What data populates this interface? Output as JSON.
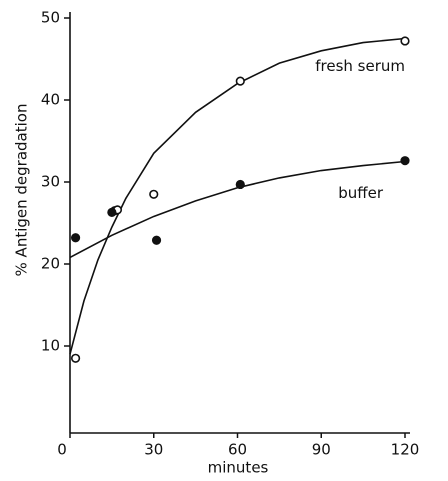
{
  "chart_data": {
    "type": "scatter",
    "x_label": "minutes",
    "y_label": "% Antigen degradation",
    "xlim": [
      0,
      120
    ],
    "ylim": [
      0,
      50
    ],
    "xticks": [
      0,
      30,
      60,
      90,
      120
    ],
    "yticks": [
      10,
      20,
      30,
      40,
      50
    ],
    "series": [
      {
        "name": "fresh serum",
        "marker": "open",
        "color": "#111111",
        "x": [
          2,
          16,
          17,
          30,
          61,
          120
        ],
        "values": [
          8.5,
          26.5,
          26.6,
          28.5,
          42.3,
          47.2
        ],
        "fit_x": [
          0,
          5,
          10,
          15,
          20,
          30,
          45,
          60,
          75,
          90,
          105,
          120
        ],
        "fit_values": [
          9,
          15.5,
          20.5,
          24.5,
          28,
          33.5,
          38.5,
          42,
          44.5,
          46,
          47,
          47.5
        ]
      },
      {
        "name": "buffer",
        "marker": "filled",
        "color": "#111111",
        "x": [
          2,
          15,
          31,
          61,
          120
        ],
        "values": [
          23.2,
          26.3,
          22.9,
          29.7,
          32.6
        ],
        "fit_x": [
          0,
          15,
          30,
          45,
          60,
          75,
          90,
          105,
          120
        ],
        "fit_values": [
          20.8,
          23.5,
          25.8,
          27.7,
          29.3,
          30.5,
          31.4,
          32,
          32.5
        ]
      }
    ]
  }
}
